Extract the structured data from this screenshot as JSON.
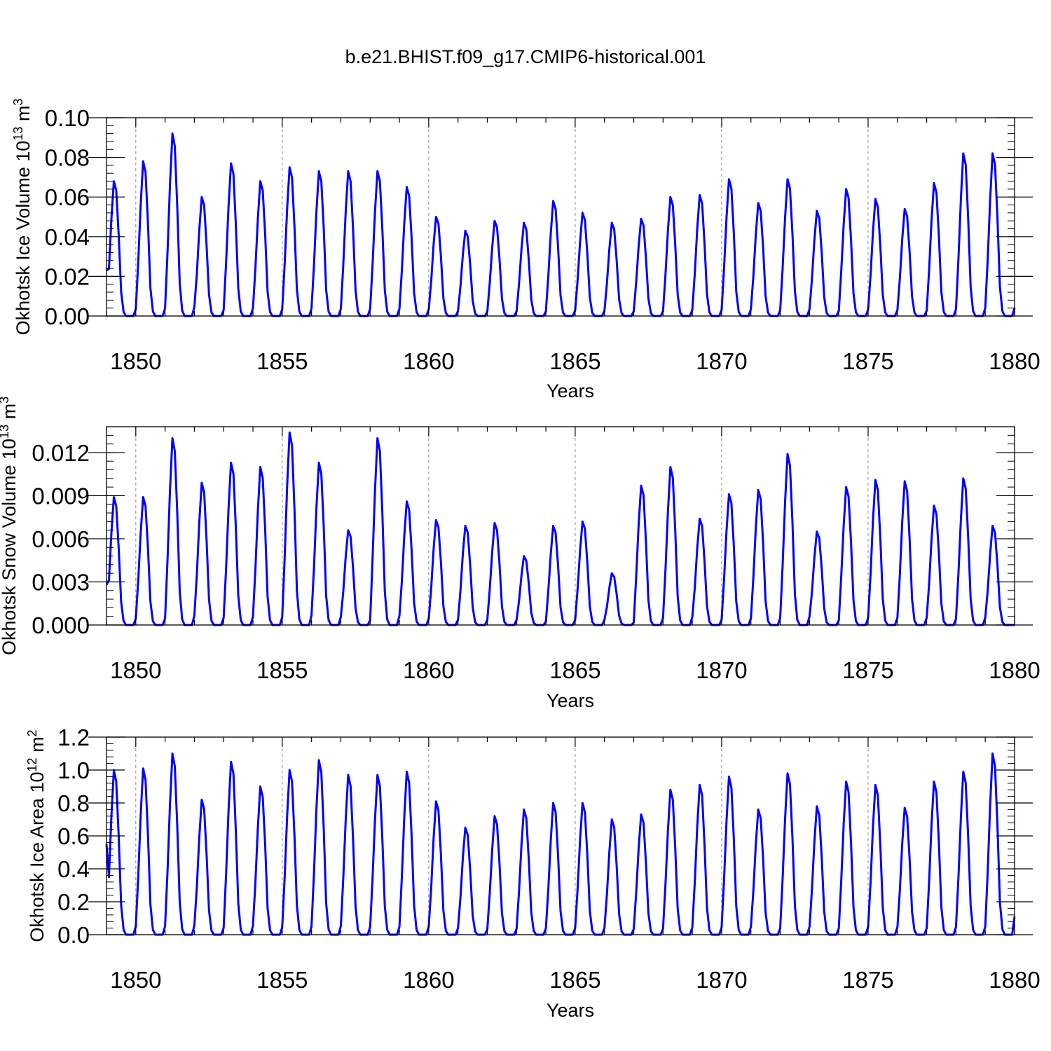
{
  "page_title": "b.e21.BHIST.f09_g17.CMIP6-historical.001",
  "line_color": "#0000ff",
  "chart_data": [
    {
      "type": "line",
      "id": "ice-volume",
      "ylabel": "Okhotsk Ice Volume 10",
      "ylabel_sup": "13",
      "ylabel_unit": " m",
      "ylabel_unit_sup": "3",
      "xlabel": "Years",
      "xlim": [
        1849,
        1880
      ],
      "ylim": [
        0,
        0.1
      ],
      "yticks": [
        0,
        0.02,
        0.04,
        0.06,
        0.08,
        0.1
      ],
      "ytick_labels": [
        "0.00",
        "0.02",
        "0.04",
        "0.06",
        "0.08",
        "0.10"
      ],
      "xticks": [
        1850,
        1855,
        1860,
        1865,
        1870,
        1875,
        1880
      ],
      "xtick_labels": [
        "1850",
        "1855",
        "1860",
        "1865",
        "1870",
        "1875",
        "1880"
      ],
      "grid": "dashed vertical at major x ticks",
      "series": [
        {
          "name": "Okhotsk Ice Volume",
          "start_value": 0.023,
          "annual_peaks": [
            0.068,
            0.078,
            0.092,
            0.06,
            0.077,
            0.068,
            0.075,
            0.073,
            0.073,
            0.073,
            0.065,
            0.05,
            0.043,
            0.048,
            0.047,
            0.058,
            0.052,
            0.047,
            0.049,
            0.06,
            0.061,
            0.069,
            0.057,
            0.069,
            0.053,
            0.064,
            0.059,
            0.054,
            0.067,
            0.082,
            0.082
          ],
          "end_value": 0.004
        }
      ]
    },
    {
      "type": "line",
      "id": "snow-volume",
      "ylabel": "Okhotsk Snow Volume 10",
      "ylabel_sup": "13",
      "ylabel_unit": " m",
      "ylabel_unit_sup": "3",
      "xlabel": "Years",
      "xlim": [
        1849,
        1880
      ],
      "ylim": [
        0,
        0.0138
      ],
      "yticks": [
        0,
        0.003,
        0.006,
        0.009,
        0.012
      ],
      "ytick_labels": [
        "0.000",
        "0.003",
        "0.006",
        "0.009",
        "0.012"
      ],
      "xticks": [
        1850,
        1855,
        1860,
        1865,
        1870,
        1875,
        1880
      ],
      "xtick_labels": [
        "1850",
        "1855",
        "1860",
        "1865",
        "1870",
        "1875",
        "1880"
      ],
      "grid": "dashed vertical at major x ticks",
      "series": [
        {
          "name": "Okhotsk Snow Volume",
          "start_value": 0.0028,
          "annual_peaks": [
            0.0089,
            0.0089,
            0.013,
            0.0099,
            0.0113,
            0.011,
            0.0134,
            0.0113,
            0.0066,
            0.013,
            0.0086,
            0.0073,
            0.0069,
            0.0071,
            0.0048,
            0.0069,
            0.0072,
            0.0036,
            0.0097,
            0.011,
            0.0074,
            0.0091,
            0.0094,
            0.0119,
            0.0065,
            0.0096,
            0.0101,
            0.01,
            0.0083,
            0.0102,
            0.0069
          ],
          "end_value": 0
        }
      ]
    },
    {
      "type": "line",
      "id": "ice-area",
      "ylabel": "Okhotsk Ice Area 10",
      "ylabel_sup": "12",
      "ylabel_unit": " m",
      "ylabel_unit_sup": "2",
      "xlabel": "Years",
      "xlim": [
        1849,
        1880
      ],
      "ylim": [
        0,
        1.2
      ],
      "yticks": [
        0,
        0.2,
        0.4,
        0.6,
        0.8,
        1.0,
        1.2
      ],
      "ytick_labels": [
        "0.0",
        "0.2",
        "0.4",
        "0.6",
        "0.8",
        "1.0",
        "1.2"
      ],
      "xticks": [
        1850,
        1855,
        1860,
        1865,
        1870,
        1875,
        1880
      ],
      "xtick_labels": [
        "1850",
        "1855",
        "1860",
        "1865",
        "1870",
        "1875",
        "1880"
      ],
      "grid": "dashed vertical at major x ticks",
      "series": [
        {
          "name": "Okhotsk Ice Area",
          "start_value": 0.55,
          "annual_peaks": [
            1.0,
            1.01,
            1.1,
            0.82,
            1.05,
            0.9,
            1.0,
            1.06,
            0.97,
            0.97,
            0.99,
            0.81,
            0.65,
            0.72,
            0.76,
            0.8,
            0.8,
            0.7,
            0.73,
            0.88,
            0.91,
            0.96,
            0.76,
            0.98,
            0.78,
            0.93,
            0.91,
            0.77,
            0.93,
            0.99,
            1.1
          ],
          "end_value": 0.11
        }
      ]
    }
  ]
}
